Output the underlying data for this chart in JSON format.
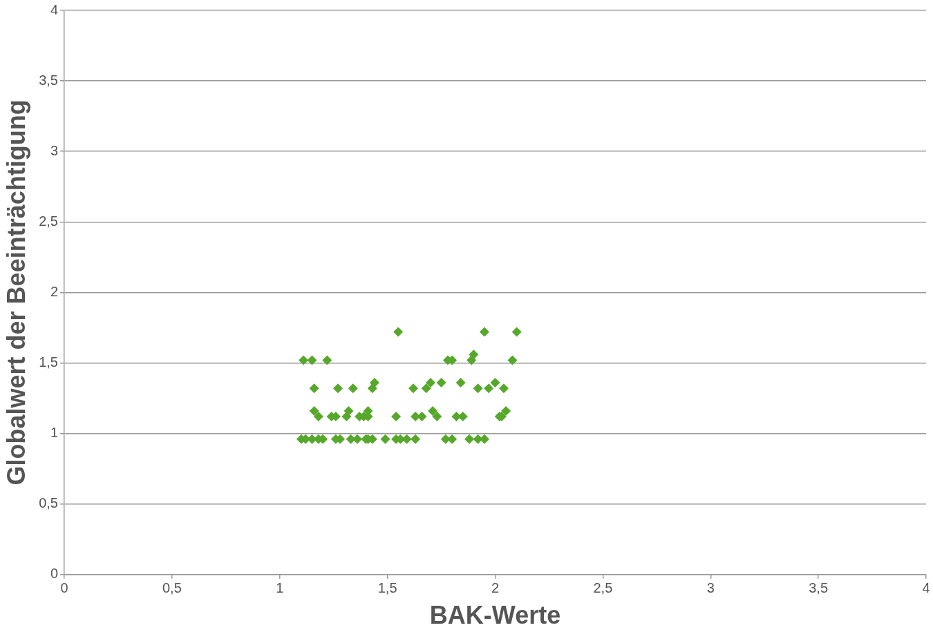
{
  "chart_data": {
    "type": "scatter",
    "xlabel": "BAK-Werte",
    "ylabel": "Globalwert der Beeinträchtigung",
    "marker": "diamond",
    "grid": "y",
    "xlim": [
      0,
      4
    ],
    "ylim": [
      0,
      4
    ],
    "xticks": [
      0,
      {
        "value": 0.5,
        "label": "0,5"
      },
      1,
      {
        "value": 1.5,
        "label": "1,5"
      },
      2,
      {
        "value": 2.5,
        "label": "2,5"
      },
      3,
      {
        "value": 3.5,
        "label": "3,5"
      },
      4
    ],
    "yticks": [
      0,
      {
        "value": 0.5,
        "label": "0,5"
      },
      1,
      {
        "value": 1.5,
        "label": "1,5"
      },
      2,
      {
        "value": 2.5,
        "label": "2,5"
      },
      3,
      {
        "value": 3.5,
        "label": "3,5"
      },
      4
    ],
    "series": [
      {
        "color": "#56a82a",
        "x": [
          1.55,
          1.95,
          2.1,
          1.11,
          1.15,
          1.22,
          1.78,
          1.8,
          1.89,
          2.08,
          1.9,
          1.44,
          1.7,
          1.75,
          1.84,
          2.0,
          1.16,
          1.27,
          1.34,
          1.43,
          1.62,
          1.68,
          1.92,
          1.97,
          2.04,
          1.16,
          1.32,
          1.41,
          1.71,
          2.05,
          1.18,
          1.24,
          1.26,
          1.31,
          1.37,
          1.39,
          1.41,
          1.54,
          1.63,
          1.66,
          1.73,
          1.82,
          1.85,
          2.02,
          2.03,
          1.1,
          1.12,
          1.15,
          1.18,
          1.2,
          1.26,
          1.28,
          1.33,
          1.36,
          1.4,
          1.41,
          1.43,
          1.49,
          1.54,
          1.56,
          1.59,
          1.63,
          1.77,
          1.8,
          1.88,
          1.92,
          1.95
        ],
        "values": [
          1.72,
          1.72,
          1.72,
          1.52,
          1.52,
          1.52,
          1.52,
          1.52,
          1.52,
          1.52,
          1.56,
          1.36,
          1.36,
          1.36,
          1.36,
          1.36,
          1.32,
          1.32,
          1.32,
          1.32,
          1.32,
          1.32,
          1.32,
          1.32,
          1.32,
          1.16,
          1.16,
          1.16,
          1.16,
          1.16,
          1.12,
          1.12,
          1.12,
          1.12,
          1.12,
          1.12,
          1.12,
          1.12,
          1.12,
          1.12,
          1.12,
          1.12,
          1.12,
          1.12,
          1.12,
          0.96,
          0.96,
          0.96,
          0.96,
          0.96,
          0.96,
          0.96,
          0.96,
          0.96,
          0.96,
          0.96,
          0.96,
          0.96,
          0.96,
          0.96,
          0.96,
          0.96,
          0.96,
          0.96,
          0.96,
          0.96,
          0.96
        ]
      }
    ]
  }
}
